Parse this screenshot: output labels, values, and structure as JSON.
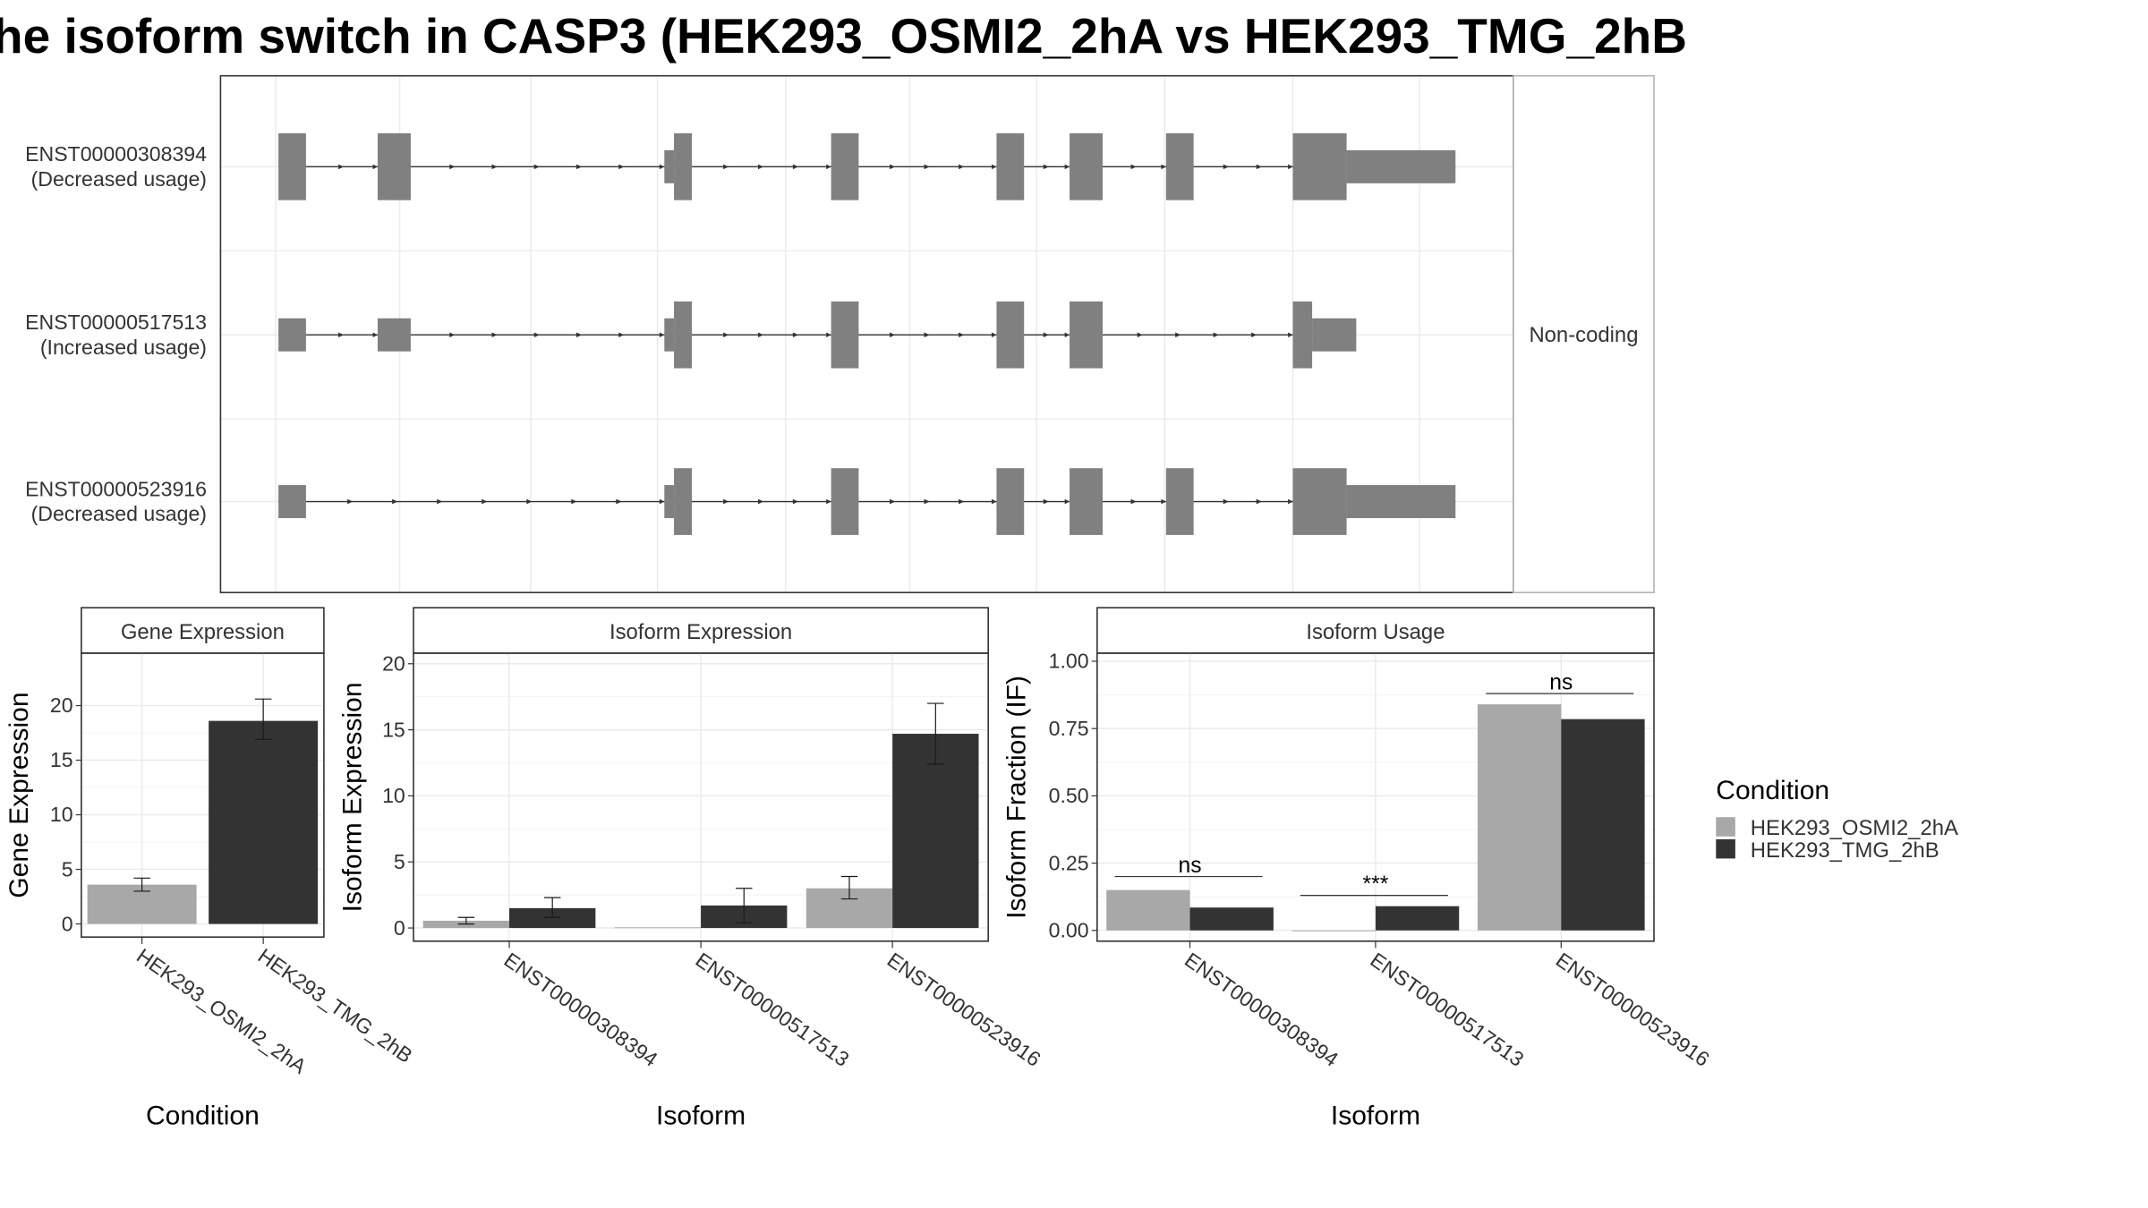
{
  "title": "he isoform switch in CASP3 (HEK293_OSMI2_2hA vs HEK293_TMG_2hB",
  "chart_data": [
    {
      "type": "gene-structure",
      "facet_label": "Non-coding",
      "x_gridlines": [
        200,
        290,
        385,
        477,
        570,
        660,
        752,
        845,
        938,
        1030
      ],
      "isoforms": [
        {
          "id": "ENST00000308394",
          "usage": "(Decreased usage)",
          "exons": [
            [
              202,
              222,
              "full"
            ],
            [
              274,
              298,
              "full"
            ],
            [
              482,
              489,
              "half"
            ],
            [
              489,
              502,
              "full"
            ],
            [
              603,
              623,
              "full"
            ],
            [
              723,
              743,
              "full"
            ],
            [
              776,
              800,
              "full"
            ],
            [
              846,
              866,
              "full"
            ],
            [
              938,
              977,
              "full"
            ],
            [
              977,
              1056,
              "half"
            ]
          ]
        },
        {
          "id": "ENST00000517513",
          "usage": "(Increased usage)",
          "exons": [
            [
              202,
              222,
              "half"
            ],
            [
              274,
              298,
              "half"
            ],
            [
              482,
              489,
              "half"
            ],
            [
              489,
              502,
              "full"
            ],
            [
              603,
              623,
              "full"
            ],
            [
              723,
              743,
              "full"
            ],
            [
              776,
              800,
              "full"
            ],
            [
              938,
              952,
              "full"
            ],
            [
              952,
              984,
              "half"
            ]
          ]
        },
        {
          "id": "ENST00000523916",
          "usage": "(Decreased usage)",
          "exons": [
            [
              202,
              222,
              "half"
            ],
            [
              482,
              489,
              "half"
            ],
            [
              489,
              502,
              "full"
            ],
            [
              603,
              623,
              "full"
            ],
            [
              723,
              743,
              "full"
            ],
            [
              776,
              800,
              "full"
            ],
            [
              846,
              866,
              "full"
            ],
            [
              938,
              977,
              "full"
            ],
            [
              977,
              1056,
              "half"
            ]
          ]
        }
      ]
    },
    {
      "type": "bar",
      "facet_title": "Gene Expression",
      "xlabel": "Condition",
      "ylabel": "Gene Expression",
      "ylim": [
        -1.2,
        24.8
      ],
      "yticks": [
        0,
        5,
        10,
        15,
        20
      ],
      "categories": [
        "HEK293_OSMI2_2hA",
        "HEK293_TMG_2hB"
      ],
      "series": [
        {
          "name": "HEK293_OSMI2_2hA",
          "values": [
            3.6,
            null
          ],
          "errors": [
            [
              3.0,
              4.2
            ],
            null
          ]
        },
        {
          "name": "HEK293_TMG_2hB",
          "values": [
            null,
            18.6
          ],
          "errors": [
            null,
            [
              16.9,
              20.6
            ]
          ]
        }
      ]
    },
    {
      "type": "bar",
      "facet_title": "Isoform Expression",
      "xlabel": "Isoform",
      "ylabel": "Isoform Expression",
      "ylim": [
        -1.0,
        20.8
      ],
      "yticks": [
        0,
        5,
        10,
        15,
        20
      ],
      "categories": [
        "ENST00000308394",
        "ENST00000517513",
        "ENST00000523916"
      ],
      "series": [
        {
          "name": "HEK293_OSMI2_2hA",
          "values": [
            0.55,
            0.05,
            3.0
          ],
          "errors": [
            [
              0.3,
              0.8
            ],
            null,
            [
              2.2,
              3.9
            ]
          ]
        },
        {
          "name": "HEK293_TMG_2hB",
          "values": [
            1.5,
            1.7,
            14.7
          ],
          "errors": [
            [
              0.8,
              2.3
            ],
            [
              0.4,
              3.0
            ],
            [
              12.4,
              17.0
            ]
          ]
        }
      ]
    },
    {
      "type": "bar",
      "facet_title": "Isoform Usage",
      "xlabel": "Isoform",
      "ylabel": "Isoform Fraction (IF)",
      "ylim": [
        -0.04,
        1.03
      ],
      "yticks": [
        "0.00",
        "0.25",
        "0.50",
        "0.75",
        "1.00"
      ],
      "categories": [
        "ENST00000308394",
        "ENST00000517513",
        "ENST00000523916"
      ],
      "series": [
        {
          "name": "HEK293_OSMI2_2hA",
          "values": [
            0.15,
            0.0,
            0.84
          ]
        },
        {
          "name": "HEK293_TMG_2hB",
          "values": [
            0.085,
            0.09,
            0.785
          ]
        }
      ],
      "annotations": [
        {
          "label": "ns",
          "y": 0.2
        },
        {
          "label": "***",
          "y": 0.13
        },
        {
          "label": "ns",
          "y": 0.88
        }
      ]
    }
  ],
  "legend": {
    "title": "Condition",
    "entries": [
      {
        "label": "HEK293_OSMI2_2hA",
        "color": "#a8a8a8"
      },
      {
        "label": "HEK293_TMG_2hB",
        "color": "#333333"
      }
    ]
  },
  "colors": {
    "exon": "#808080",
    "cond_a": "#a8a8a8",
    "cond_b": "#333333",
    "grid": "#ebebeb",
    "strip": "#ffffff"
  }
}
